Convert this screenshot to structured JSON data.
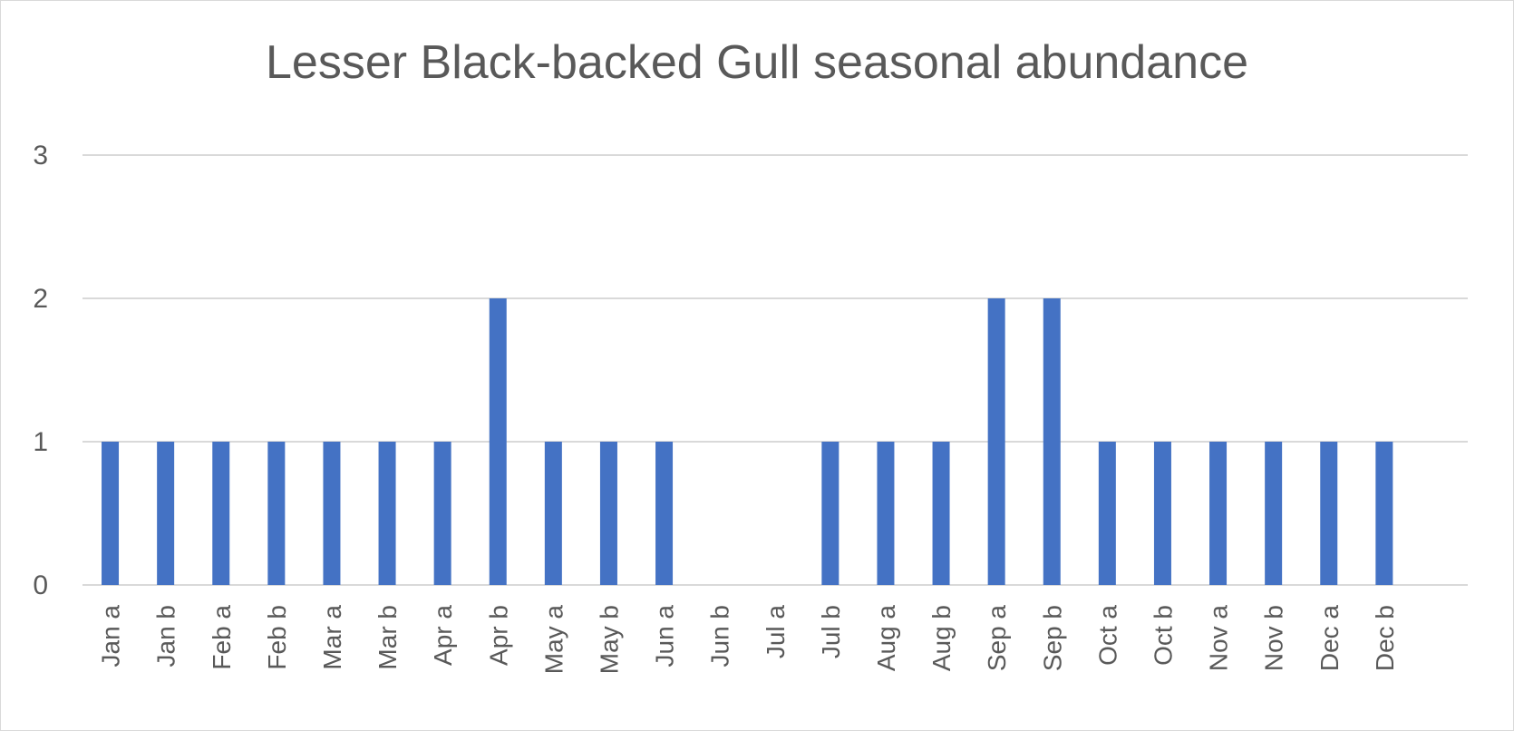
{
  "chart_data": {
    "type": "bar",
    "title": "Lesser Black-backed Gull seasonal abundance",
    "xlabel": "",
    "ylabel": "",
    "categories": [
      "Jan a",
      "Jan b",
      "Feb a",
      "Feb b",
      "Mar a",
      "Mar b",
      "Apr a",
      "Apr b",
      "May a",
      "May b",
      "Jun a",
      "Jun b",
      "Jul a",
      "Jul b",
      "Aug a",
      "Aug b",
      "Sep a",
      "Sep b",
      "Oct a",
      "Oct b",
      "Nov a",
      "Nov b",
      "Dec a",
      "Dec b"
    ],
    "values": [
      1,
      1,
      1,
      1,
      1,
      1,
      1,
      2,
      1,
      1,
      1,
      0,
      0,
      1,
      1,
      1,
      2,
      2,
      1,
      1,
      1,
      1,
      1,
      1
    ],
    "ylim": [
      0,
      3
    ],
    "yticks": [
      0,
      1,
      2,
      3
    ],
    "grid": true,
    "legend": "none",
    "colors": {
      "bar": "#4472c4",
      "grid": "#d9d9d9",
      "text": "#595959"
    }
  }
}
